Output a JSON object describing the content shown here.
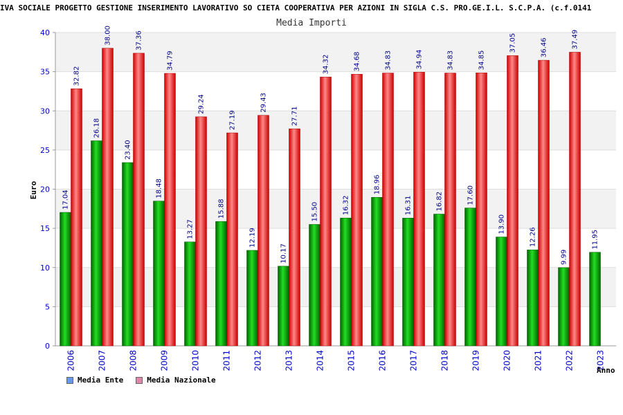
{
  "chart_data": {
    "type": "bar",
    "title": "IVA SOCIALE PROGETTO GESTIONE INSERIMENTO LAVORATIVO SO CIETA COOPERATIVA PER AZIONI IN SIGLA C.S. PRO.GE.I.L. S.C.P.A. (c.f.0141",
    "subtitle": "Media Importi",
    "ylabel": "Euro",
    "xlabel": "Anno",
    "ylim": [
      0,
      40
    ],
    "yticks": [
      0,
      5,
      10,
      15,
      20,
      25,
      30,
      35,
      40
    ],
    "categories": [
      "2006",
      "2007",
      "2008",
      "2009",
      "2010",
      "2011",
      "2012",
      "2013",
      "2014",
      "2015",
      "2016",
      "2017",
      "2018",
      "2019",
      "2020",
      "2021",
      "2022",
      "2023"
    ],
    "series": [
      {
        "name": "Media Ente",
        "color": "#00aa00",
        "legend_color": "#6699ee",
        "values": [
          17.04,
          26.18,
          23.4,
          18.48,
          13.27,
          15.88,
          12.19,
          10.17,
          15.5,
          16.32,
          18.96,
          16.31,
          16.82,
          17.6,
          13.9,
          12.26,
          9.99,
          11.95
        ],
        "labels": [
          "17.04",
          "26.18",
          "23.40",
          "18.48",
          "13.27",
          "15.88",
          "12.19",
          "10.17",
          "15.50",
          "16.32",
          "18.96",
          "16.31",
          "16.82",
          "17.60",
          "13.90",
          "12.26",
          "9.99",
          "11.95"
        ]
      },
      {
        "name": "Media Nazionale",
        "color": "#ee1111",
        "legend_color": "#dd88aa",
        "values": [
          32.82,
          38.0,
          37.36,
          34.79,
          29.24,
          27.19,
          29.43,
          27.71,
          34.32,
          34.68,
          34.83,
          34.94,
          34.83,
          34.85,
          37.05,
          36.46,
          37.49,
          null
        ],
        "labels": [
          "32.82",
          "38.00",
          "37.36",
          "34.79",
          "29.24",
          "27.19",
          "29.43",
          "27.71",
          "34.32",
          "34.68",
          "34.83",
          "34.94",
          "34.83",
          "34.85",
          "37.05",
          "36.46",
          "37.49",
          ""
        ]
      }
    ],
    "grid": true,
    "legend_position": "bottom-left"
  }
}
